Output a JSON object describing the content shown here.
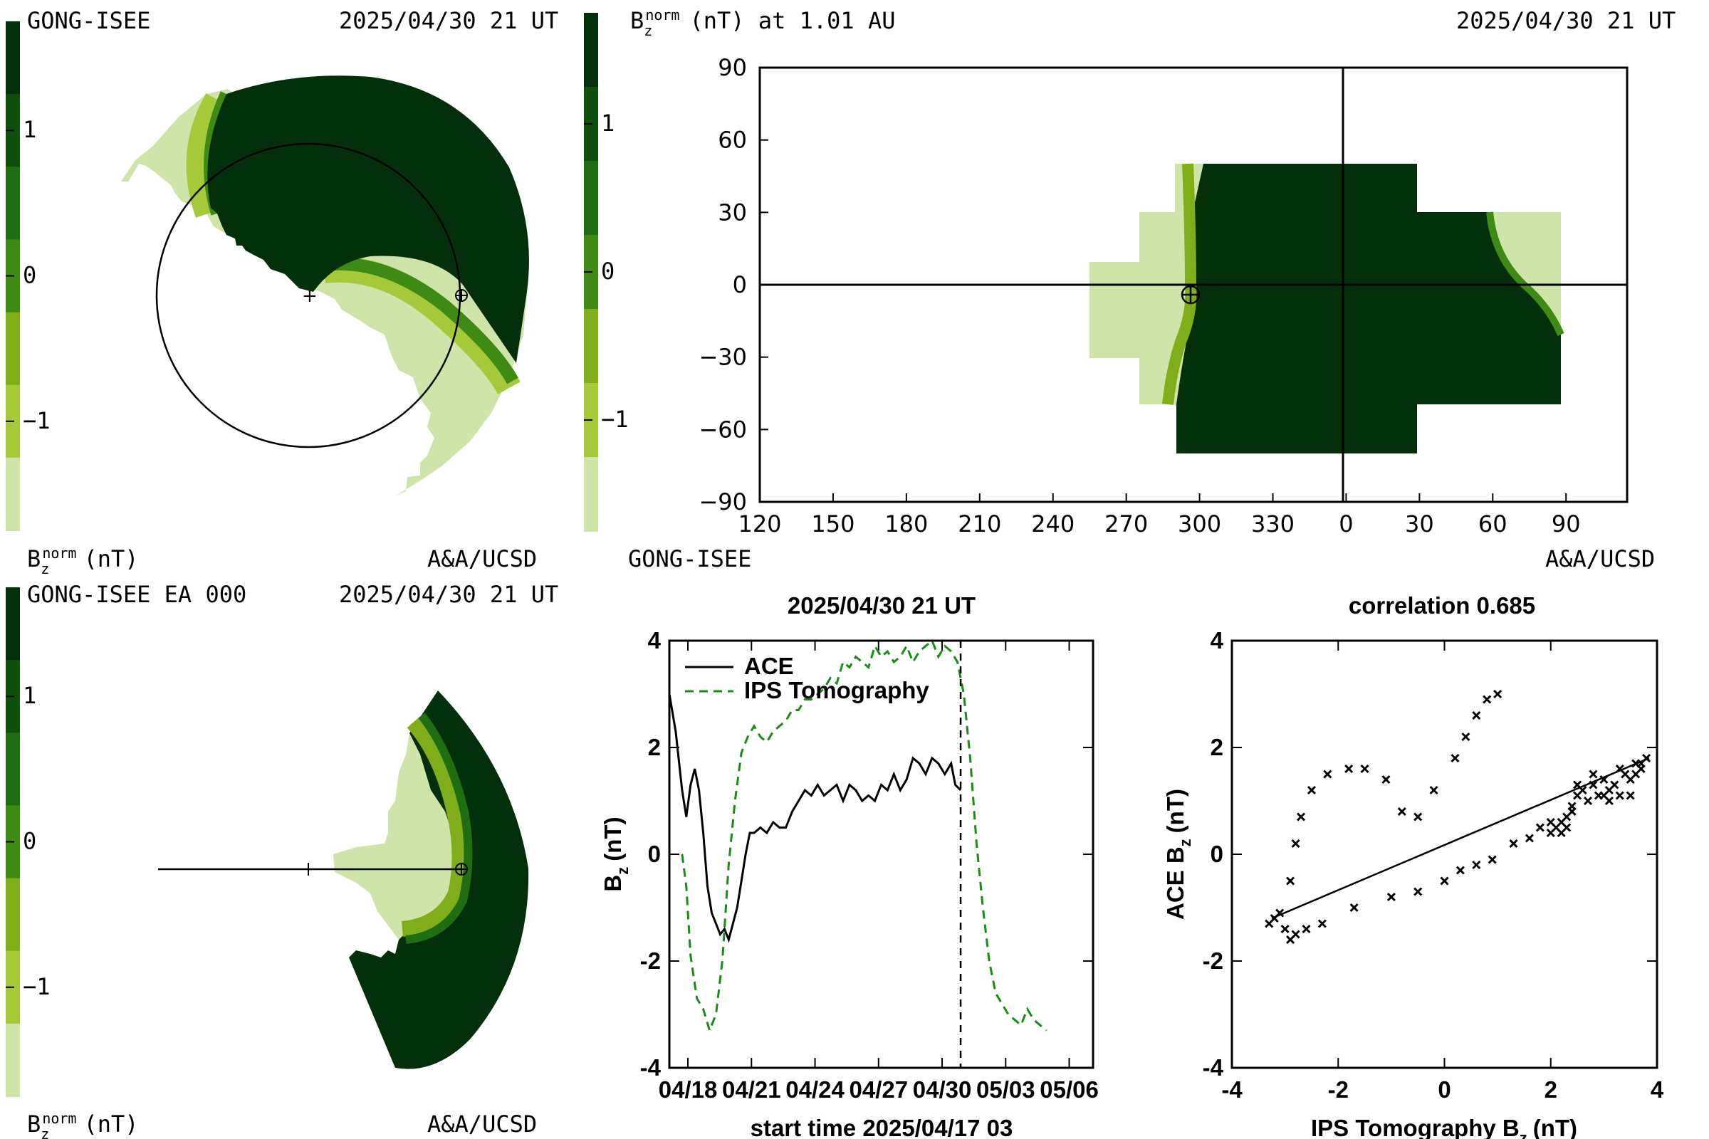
{
  "colors": {
    "bz_scale": [
      "#cfe4a8",
      "#a6c93a",
      "#7fae1a",
      "#3f8a14",
      "#1f6e12",
      "#0e4f0c",
      "#03300a"
    ],
    "dark": "#03300a",
    "light": "#cfe4a8",
    "ace_line": "#000000",
    "ips_line": "#1a8c16"
  },
  "panel_tl": {
    "source": "GONG-ISEE",
    "timestamp": "2025/04/30 21 UT",
    "bottom_label": "B",
    "credit": "A&A/UCSD"
  },
  "panel_bl": {
    "source": "GONG-ISEE EA 000",
    "timestamp": "2025/04/30 21 UT",
    "bottom_label": "B",
    "credit": "A&A/UCSD"
  },
  "panel_tr": {
    "title": "B",
    "title_suffix": "(nT) at 1.01 AU",
    "timestamp": "2025/04/30 21 UT",
    "source": "GONG-ISEE",
    "credit": "A&A/UCSD"
  },
  "colorbar": {
    "ticks": [
      "1",
      "0",
      "−1"
    ],
    "sup": "norm",
    "sub": "z",
    "unit": "(nT)"
  },
  "chart_data": [
    {
      "type": "heatmap",
      "title": "B_z^norm (nT) at 1.01 AU",
      "x_ticks": [
        "120",
        "150",
        "180",
        "210",
        "240",
        "270",
        "300",
        "330",
        "0",
        "30",
        "60",
        "90"
      ],
      "y_ticks": [
        "90",
        "60",
        "30",
        "0",
        "−30",
        "−60",
        "−90"
      ],
      "xlim": [
        120,
        475
      ],
      "ylim": [
        -90,
        90
      ],
      "earth_longitude": 297,
      "earth_latitude": -4
    },
    {
      "type": "line",
      "title": "2025/04/30 21 UT",
      "xlabel": "start time 2025/04/17 03",
      "ylabel": "B",
      "ylabel_sub": "z",
      "ylabel_unit": "(nT)",
      "x_ticks": [
        "04/18",
        "04/21",
        "04/24",
        "04/27",
        "04/30",
        "05/03",
        "05/06"
      ],
      "y_ticks": [
        "4",
        "2",
        "0",
        "-2",
        "-4"
      ],
      "xlim_days": [
        0,
        20
      ],
      "ylim": [
        -4,
        4
      ],
      "now_marker_day": 13.75,
      "series": [
        {
          "name": "ACE",
          "style": "solid",
          "x": [
            0.0,
            0.3,
            0.6,
            0.8,
            1.0,
            1.2,
            1.4,
            1.6,
            1.8,
            2.0,
            2.2,
            2.4,
            2.6,
            2.8,
            3.0,
            3.2,
            3.4,
            3.6,
            3.8,
            4.0,
            4.3,
            4.6,
            4.9,
            5.2,
            5.5,
            5.8,
            6.1,
            6.4,
            6.7,
            7.0,
            7.3,
            7.6,
            7.9,
            8.2,
            8.5,
            8.8,
            9.1,
            9.4,
            9.7,
            10.0,
            10.3,
            10.6,
            10.9,
            11.2,
            11.5,
            11.8,
            12.1,
            12.4,
            12.7,
            13.0,
            13.3,
            13.5,
            13.75
          ],
          "y": [
            3.0,
            2.3,
            1.2,
            0.7,
            1.3,
            1.6,
            1.2,
            0.4,
            -0.6,
            -1.1,
            -1.3,
            -1.5,
            -1.4,
            -1.6,
            -1.3,
            -1.0,
            -0.5,
            0.0,
            0.4,
            0.4,
            0.5,
            0.4,
            0.6,
            0.5,
            0.5,
            0.8,
            1.0,
            1.2,
            1.1,
            1.3,
            1.1,
            1.2,
            1.3,
            1.0,
            1.3,
            1.2,
            1.0,
            1.1,
            1.0,
            1.3,
            1.2,
            1.5,
            1.2,
            1.4,
            1.8,
            1.7,
            1.5,
            1.8,
            1.7,
            1.5,
            1.7,
            1.3,
            1.2
          ]
        },
        {
          "name": "IPS Tomography",
          "style": "dashed",
          "x": [
            0.6,
            0.8,
            1.0,
            1.3,
            1.6,
            1.9,
            2.2,
            2.5,
            2.8,
            3.1,
            3.4,
            3.7,
            4.0,
            4.3,
            4.6,
            4.9,
            5.2,
            5.5,
            5.8,
            6.1,
            6.4,
            6.7,
            7.0,
            7.3,
            7.6,
            7.9,
            8.2,
            8.5,
            8.8,
            9.1,
            9.4,
            9.7,
            10.0,
            10.3,
            10.6,
            10.9,
            11.2,
            11.5,
            11.8,
            12.1,
            12.4,
            12.7,
            13.0,
            13.3,
            13.6,
            13.9,
            14.2,
            14.5,
            14.8,
            15.1,
            15.4,
            15.7,
            16.0,
            16.3,
            16.6,
            16.9,
            17.2,
            17.5,
            17.8
          ],
          "y": [
            0.0,
            -0.6,
            -1.9,
            -2.7,
            -2.9,
            -3.3,
            -3.0,
            -2.0,
            -0.2,
            1.0,
            1.9,
            2.2,
            2.4,
            2.2,
            2.1,
            2.3,
            2.4,
            2.5,
            2.7,
            2.7,
            2.9,
            2.9,
            3.0,
            3.1,
            3.3,
            3.2,
            3.6,
            3.5,
            3.7,
            3.6,
            3.5,
            3.9,
            3.7,
            3.8,
            3.6,
            3.7,
            3.9,
            3.6,
            3.8,
            3.9,
            4.0,
            3.7,
            3.9,
            3.8,
            3.6,
            3.0,
            1.8,
            0.2,
            -1.0,
            -2.0,
            -2.6,
            -2.8,
            -3.0,
            -3.1,
            -3.2,
            -2.9,
            -3.1,
            -3.2,
            -3.3
          ]
        }
      ]
    },
    {
      "type": "scatter",
      "title": "correlation 0.685",
      "xlabel": "IPS Tomography B",
      "xlabel_sub": "z",
      "xlabel_unit": "(nT)",
      "ylabel": "ACE B",
      "ylabel_sub": "z",
      "ylabel_unit": "(nT)",
      "x_ticks": [
        "-4",
        "-2",
        "0",
        "2",
        "4"
      ],
      "y_ticks": [
        "4",
        "2",
        "0",
        "-2",
        "-4"
      ],
      "xlim": [
        -4,
        4
      ],
      "ylim": [
        -4,
        4
      ],
      "fit_line": [
        [
          -3.25,
          -1.2
        ],
        [
          3.85,
          1.8
        ]
      ],
      "points": [
        [
          -3.3,
          -1.3
        ],
        [
          -3.2,
          -1.2
        ],
        [
          -3.1,
          -1.1
        ],
        [
          -3.0,
          -1.4
        ],
        [
          -2.9,
          -1.6
        ],
        [
          -2.8,
          -1.5
        ],
        [
          -2.6,
          -1.4
        ],
        [
          -2.3,
          -1.3
        ],
        [
          -1.7,
          -1.0
        ],
        [
          -1.0,
          -0.8
        ],
        [
          -0.5,
          -0.7
        ],
        [
          0.0,
          -0.5
        ],
        [
          0.3,
          -0.3
        ],
        [
          0.6,
          -0.2
        ],
        [
          0.9,
          -0.1
        ],
        [
          1.3,
          0.2
        ],
        [
          1.6,
          0.3
        ],
        [
          1.8,
          0.5
        ],
        [
          2.0,
          0.4
        ],
        [
          2.1,
          0.5
        ],
        [
          2.2,
          0.6
        ],
        [
          2.3,
          0.7
        ],
        [
          2.4,
          0.9
        ],
        [
          2.5,
          1.1
        ],
        [
          2.6,
          1.2
        ],
        [
          2.7,
          1.0
        ],
        [
          2.8,
          1.3
        ],
        [
          2.9,
          1.1
        ],
        [
          3.0,
          1.4
        ],
        [
          3.1,
          1.2
        ],
        [
          3.2,
          1.3
        ],
        [
          3.3,
          1.1
        ],
        [
          3.4,
          1.5
        ],
        [
          3.5,
          1.4
        ],
        [
          3.6,
          1.7
        ],
        [
          3.7,
          1.6
        ],
        [
          3.8,
          1.8
        ],
        [
          3.5,
          1.1
        ],
        [
          3.3,
          1.6
        ],
        [
          2.2,
          0.4
        ],
        [
          2.3,
          0.5
        ],
        [
          2.5,
          1.3
        ],
        [
          3.0,
          1.1
        ],
        [
          3.6,
          1.5
        ],
        [
          -2.9,
          -0.5
        ],
        [
          -2.8,
          0.2
        ],
        [
          -2.7,
          0.7
        ],
        [
          -2.5,
          1.2
        ],
        [
          -2.2,
          1.5
        ],
        [
          -1.8,
          1.6
        ],
        [
          -1.5,
          1.6
        ],
        [
          -1.1,
          1.4
        ],
        [
          -0.8,
          0.8
        ],
        [
          -0.5,
          0.7
        ],
        [
          -0.2,
          1.2
        ],
        [
          0.2,
          1.8
        ],
        [
          0.4,
          2.2
        ],
        [
          0.6,
          2.6
        ],
        [
          0.8,
          2.9
        ],
        [
          1.0,
          3.0
        ],
        [
          2.4,
          0.8
        ],
        [
          2.8,
          1.5
        ],
        [
          3.7,
          1.7
        ],
        [
          3.1,
          1.0
        ],
        [
          2.0,
          0.6
        ]
      ]
    }
  ]
}
